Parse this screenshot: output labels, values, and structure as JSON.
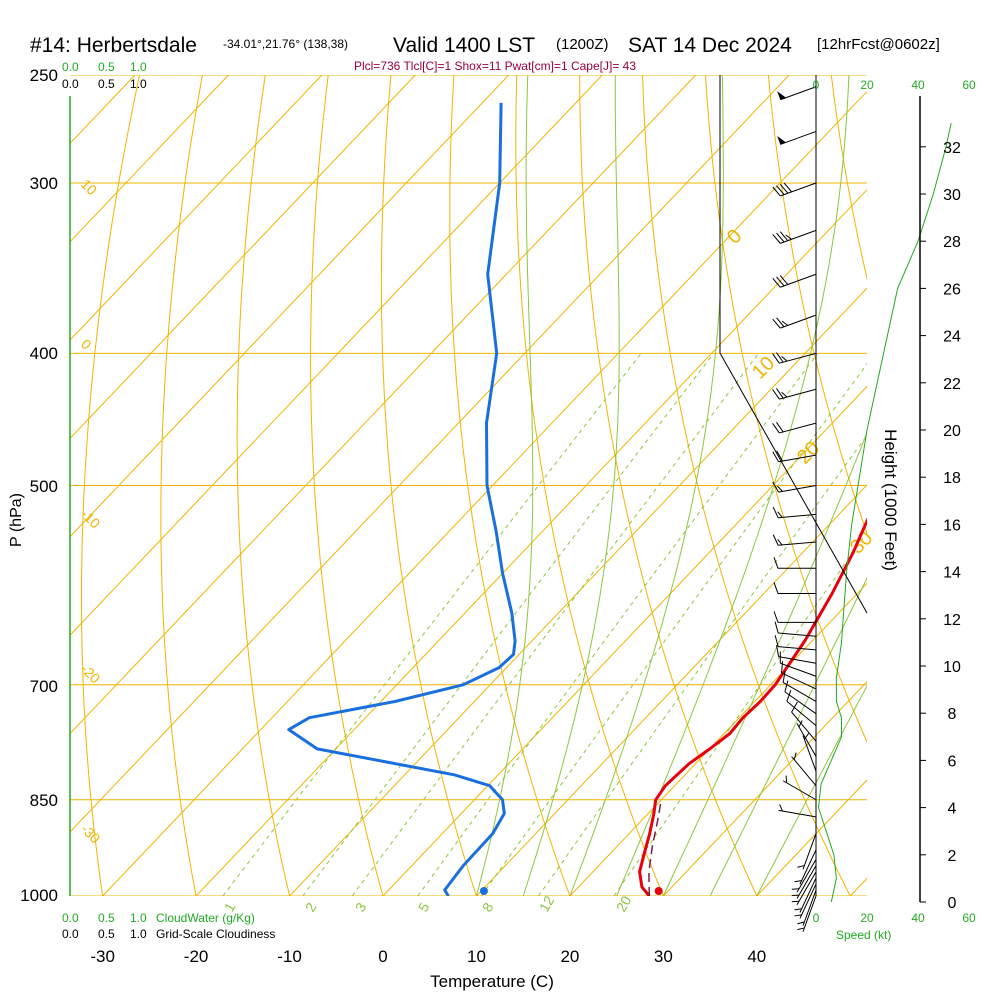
{
  "title": {
    "main": "#14: Herbertsdale",
    "coords": "-34.01°,21.76° (138,38)",
    "valid": "Valid 1400 LST",
    "zulu": "(1200Z)",
    "date": "SAT 14 Dec 2024",
    "forecast": "[12hrFcst@0602z]"
  },
  "indices": "Plcl=736 Tlcl[C]=1 Shox=11 Pwat[cm]=1 Cape[J]= 43",
  "colors": {
    "isobar": "#f0b400",
    "dry_adiabat": "#f0b400",
    "moist_adiabat": "#8cc63f",
    "mixing_ratio": "#8cc63f",
    "temperature": "#e8000b",
    "dewpoint": "#1a6fdf",
    "parcel": "#7a1f4f",
    "green_text": "#22aa22",
    "indices_text": "#990044"
  },
  "chart_data": {
    "type": "skew-t",
    "xlabel": "Temperature (C)",
    "ylabel": "P (hPa)",
    "x_ticks": [
      -30,
      -20,
      -10,
      0,
      10,
      20,
      30,
      40
    ],
    "pressure_ticks": [
      250,
      300,
      400,
      500,
      700,
      850,
      1000
    ],
    "xlim": [
      -33.4,
      36
    ],
    "plim": [
      1000,
      250
    ],
    "temperature": [
      {
        "p": 1000,
        "t": 28.5
      },
      {
        "p": 985,
        "t": 26.8
      },
      {
        "p": 960,
        "t": 25.0
      },
      {
        "p": 930,
        "t": 23.6
      },
      {
        "p": 900,
        "t": 22.2
      },
      {
        "p": 870,
        "t": 20.6
      },
      {
        "p": 850,
        "t": 19.4
      },
      {
        "p": 830,
        "t": 19.0
      },
      {
        "p": 800,
        "t": 19.3
      },
      {
        "p": 780,
        "t": 20.0
      },
      {
        "p": 760,
        "t": 20.6
      },
      {
        "p": 740,
        "t": 20.4
      },
      {
        "p": 720,
        "t": 20.6
      },
      {
        "p": 700,
        "t": 20.5
      },
      {
        "p": 650,
        "t": 19.2
      },
      {
        "p": 600,
        "t": 17.3
      },
      {
        "p": 560,
        "t": 15.4
      },
      {
        "p": 520,
        "t": 13.0
      },
      {
        "p": 500,
        "t": 11.5
      },
      {
        "p": 460,
        "t": 7.8
      },
      {
        "p": 420,
        "t": 3.8
      },
      {
        "p": 400,
        "t": 1.5
      },
      {
        "p": 350,
        "t": -5.1
      },
      {
        "p": 300,
        "t": -12.6
      },
      {
        "p": 262,
        "t": -19.2
      }
    ],
    "dewpoint": [
      {
        "p": 1000,
        "t": 7.0
      },
      {
        "p": 990,
        "t": 6.0
      },
      {
        "p": 950,
        "t": 5.5
      },
      {
        "p": 900,
        "t": 5.4
      },
      {
        "p": 870,
        "t": 4.6
      },
      {
        "p": 850,
        "t": 3.0
      },
      {
        "p": 830,
        "t": 0.2
      },
      {
        "p": 815,
        "t": -4.7
      },
      {
        "p": 780,
        "t": -22.0
      },
      {
        "p": 755,
        "t": -27.0
      },
      {
        "p": 740,
        "t": -26.0
      },
      {
        "p": 720,
        "t": -18.5
      },
      {
        "p": 700,
        "t": -12.9
      },
      {
        "p": 680,
        "t": -10.8
      },
      {
        "p": 665,
        "t": -10.6
      },
      {
        "p": 650,
        "t": -11.8
      },
      {
        "p": 620,
        "t": -15.0
      },
      {
        "p": 580,
        "t": -20.0
      },
      {
        "p": 540,
        "t": -25.0
      },
      {
        "p": 500,
        "t": -30.6
      },
      {
        "p": 450,
        "t": -37.0
      },
      {
        "p": 400,
        "t": -43.0
      },
      {
        "p": 350,
        "t": -52.0
      },
      {
        "p": 300,
        "t": -60.0
      },
      {
        "p": 262,
        "t": -68.0
      }
    ],
    "parcel": [
      {
        "p": 1000,
        "t": 28.5
      },
      {
        "p": 960,
        "t": 26.0
      },
      {
        "p": 920,
        "t": 23.8
      },
      {
        "p": 880,
        "t": 21.7
      },
      {
        "p": 850,
        "t": 20.0
      }
    ],
    "surface_marks": {
      "temperature": 29.5,
      "dewpoint": 10.8
    },
    "isotherm_labels": [
      "10",
      "0",
      "-10",
      "-20",
      "-30",
      "0",
      "10",
      "20",
      "30"
    ],
    "mixing_ratio_labels": [
      "1",
      "2",
      "3",
      "5",
      "8",
      "12",
      "20"
    ],
    "moist_adiabat_values": [
      10,
      15,
      20,
      25,
      30,
      35,
      40
    ],
    "mixing_ratio_values": [
      1,
      2,
      3,
      5,
      8,
      12,
      20
    ],
    "cloud_scale": {
      "top_cw": [
        "0.0",
        "0.5",
        "1.0"
      ],
      "top_gs": [
        "0.0",
        "0.5",
        "1.0"
      ],
      "bottom_cw": [
        "0.0",
        "0.5",
        "1.0"
      ],
      "bottom_gs": [
        "0.0",
        "0.5",
        "1.0"
      ],
      "cloudwater_label": "CloudWater (g/Kg)",
      "grid_label": "Grid-Scale Cloudiness"
    },
    "speed_axis": {
      "label": "Speed (kt)",
      "ticks_top": [
        "0",
        "20",
        "40",
        "60"
      ],
      "ticks_bottom": [
        "0",
        "20",
        "40",
        "60"
      ]
    },
    "height_axis": {
      "label": "Height (1000 Feet)",
      "ticks": [
        "0",
        "2",
        "4",
        "6",
        "8",
        "10",
        "12",
        "14",
        "16",
        "18",
        "20",
        "22",
        "24",
        "26",
        "28",
        "30",
        "32"
      ]
    },
    "wind_speed_profile": [
      {
        "h": 0,
        "kt": 6
      },
      {
        "h": 1,
        "kt": 8
      },
      {
        "h": 2,
        "kt": 7
      },
      {
        "h": 3,
        "kt": 4
      },
      {
        "h": 4,
        "kt": 1
      },
      {
        "h": 5,
        "kt": 2
      },
      {
        "h": 6,
        "kt": 6
      },
      {
        "h": 7,
        "kt": 10
      },
      {
        "h": 7.8,
        "kt": 10
      },
      {
        "h": 8.5,
        "kt": 8
      },
      {
        "h": 9.5,
        "kt": 8
      },
      {
        "h": 11,
        "kt": 10
      },
      {
        "h": 12.5,
        "kt": 11
      },
      {
        "h": 14,
        "kt": 12
      },
      {
        "h": 16,
        "kt": 14
      },
      {
        "h": 18,
        "kt": 17
      },
      {
        "h": 20,
        "kt": 20
      },
      {
        "h": 22,
        "kt": 24
      },
      {
        "h": 24,
        "kt": 28
      },
      {
        "h": 26,
        "kt": 32
      },
      {
        "h": 28,
        "kt": 40
      },
      {
        "h": 30,
        "kt": 46
      },
      {
        "h": 32,
        "kt": 51
      },
      {
        "h": 33,
        "kt": 53
      }
    ],
    "wind_barbs": [
      {
        "p": 1000,
        "dir": 200,
        "kt": 5
      },
      {
        "p": 990,
        "dir": 200,
        "kt": 5
      },
      {
        "p": 980,
        "dir": 205,
        "kt": 5
      },
      {
        "p": 970,
        "dir": 205,
        "kt": 5
      },
      {
        "p": 960,
        "dir": 210,
        "kt": 5
      },
      {
        "p": 950,
        "dir": 210,
        "kt": 5
      },
      {
        "p": 940,
        "dir": 210,
        "kt": 5
      },
      {
        "p": 925,
        "dir": 205,
        "kt": 5
      },
      {
        "p": 900,
        "dir": 200,
        "kt": 5
      },
      {
        "p": 875,
        "dir": 280,
        "kt": 5
      },
      {
        "p": 850,
        "dir": 300,
        "kt": 5
      },
      {
        "p": 830,
        "dir": 320,
        "kt": 5
      },
      {
        "p": 810,
        "dir": 340,
        "kt": 5
      },
      {
        "p": 790,
        "dir": 330,
        "kt": 5
      },
      {
        "p": 770,
        "dir": 320,
        "kt": 10
      },
      {
        "p": 750,
        "dir": 310,
        "kt": 10
      },
      {
        "p": 735,
        "dir": 305,
        "kt": 10
      },
      {
        "p": 720,
        "dir": 300,
        "kt": 10
      },
      {
        "p": 705,
        "dir": 295,
        "kt": 10
      },
      {
        "p": 690,
        "dir": 290,
        "kt": 10
      },
      {
        "p": 675,
        "dir": 280,
        "kt": 10
      },
      {
        "p": 660,
        "dir": 275,
        "kt": 10
      },
      {
        "p": 645,
        "dir": 275,
        "kt": 10
      },
      {
        "p": 630,
        "dir": 270,
        "kt": 10
      },
      {
        "p": 600,
        "dir": 270,
        "kt": 10
      },
      {
        "p": 575,
        "dir": 270,
        "kt": 10
      },
      {
        "p": 550,
        "dir": 265,
        "kt": 15
      },
      {
        "p": 525,
        "dir": 265,
        "kt": 15
      },
      {
        "p": 500,
        "dir": 260,
        "kt": 15
      },
      {
        "p": 475,
        "dir": 260,
        "kt": 20
      },
      {
        "p": 450,
        "dir": 255,
        "kt": 20
      },
      {
        "p": 425,
        "dir": 255,
        "kt": 25
      },
      {
        "p": 400,
        "dir": 255,
        "kt": 25
      },
      {
        "p": 375,
        "dir": 250,
        "kt": 25
      },
      {
        "p": 350,
        "dir": 250,
        "kt": 30
      },
      {
        "p": 325,
        "dir": 250,
        "kt": 35
      },
      {
        "p": 300,
        "dir": 250,
        "kt": 40
      },
      {
        "p": 275,
        "dir": 250,
        "kt": 50
      },
      {
        "p": 255,
        "dir": 250,
        "kt": 50
      }
    ]
  }
}
